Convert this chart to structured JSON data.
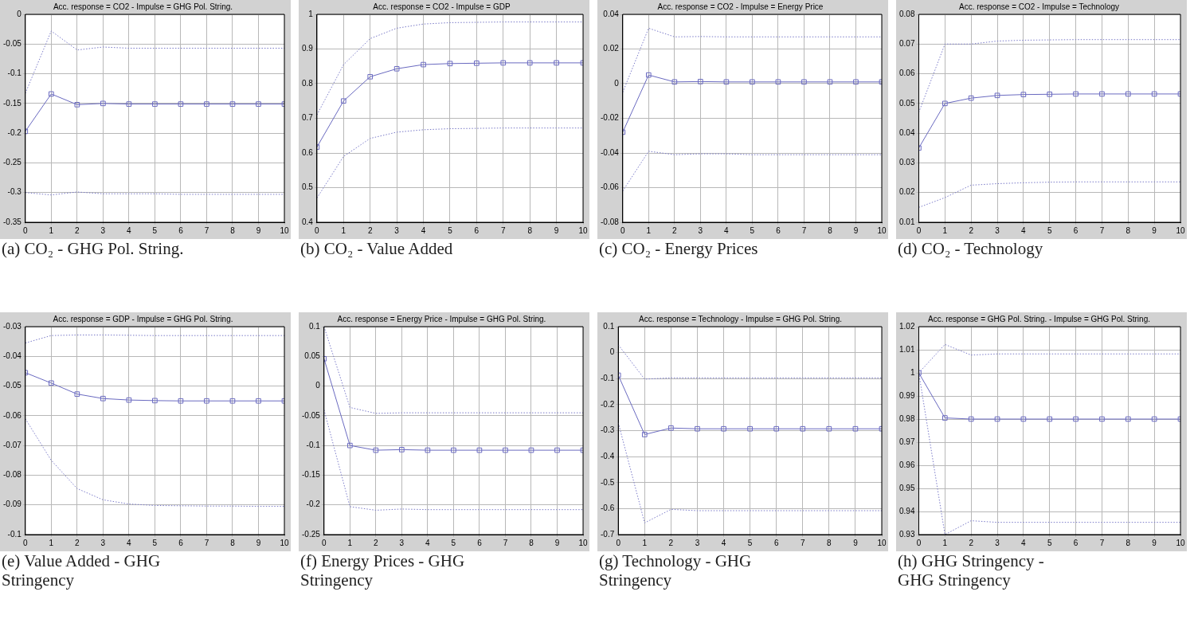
{
  "chart_data": [
    {
      "type": "line",
      "title": "Acc. response = CO2 - Impulse = GHG Pol. String.",
      "annotations": [
        "(a) CO₂ - GHG Pol. String."
      ],
      "x": [
        0,
        1,
        2,
        3,
        4,
        5,
        6,
        7,
        8,
        9,
        10
      ],
      "xlim": [
        0,
        10
      ],
      "xticks": [
        0,
        1,
        2,
        3,
        4,
        5,
        6,
        7,
        8,
        9,
        10
      ],
      "ylim": [
        -0.35,
        0
      ],
      "yticks": [
        -0.35,
        -0.3,
        -0.25,
        -0.2,
        -0.15,
        -0.1,
        -0.05,
        0
      ],
      "grid": true,
      "series": [
        {
          "color": "#7a7ac8",
          "line_style": "dotted",
          "marker": "none",
          "values": [
            -0.133,
            -0.028,
            -0.06,
            -0.055,
            -0.057,
            -0.057,
            -0.057,
            -0.057,
            -0.057,
            -0.057,
            -0.057
          ]
        },
        {
          "color": "#6a6ac0",
          "line_style": "solid",
          "marker": "square",
          "values": [
            -0.197,
            -0.134,
            -0.152,
            -0.15,
            -0.151,
            -0.151,
            -0.151,
            -0.151,
            -0.151,
            -0.151,
            -0.151
          ]
        },
        {
          "color": "#7a7ac8",
          "line_style": "dotted",
          "marker": "none",
          "values": [
            -0.3,
            -0.304,
            -0.299,
            -0.302,
            -0.302,
            -0.302,
            -0.303,
            -0.303,
            -0.303,
            -0.303,
            -0.303
          ]
        }
      ]
    },
    {
      "type": "line",
      "title": "Acc. response = CO2 - Impulse = GDP",
      "annotations": [
        "(b) CO₂ - Value Added"
      ],
      "x": [
        0,
        1,
        2,
        3,
        4,
        5,
        6,
        7,
        8,
        9,
        10
      ],
      "xlim": [
        0,
        10
      ],
      "xticks": [
        0,
        1,
        2,
        3,
        4,
        5,
        6,
        7,
        8,
        9,
        10
      ],
      "ylim": [
        0.4,
        1
      ],
      "yticks": [
        0.4,
        0.5,
        0.6,
        0.7,
        0.8,
        0.9,
        1
      ],
      "grid": true,
      "series": [
        {
          "color": "#7a7ac8",
          "line_style": "dotted",
          "marker": "none",
          "values": [
            0.71,
            0.855,
            0.93,
            0.96,
            0.972,
            0.976,
            0.977,
            0.978,
            0.978,
            0.978,
            0.978
          ]
        },
        {
          "color": "#6a6ac0",
          "line_style": "solid",
          "marker": "square",
          "values": [
            0.617,
            0.75,
            0.82,
            0.843,
            0.855,
            0.858,
            0.859,
            0.86,
            0.86,
            0.86,
            0.86
          ]
        },
        {
          "color": "#7a7ac8",
          "line_style": "dotted",
          "marker": "none",
          "values": [
            0.47,
            0.59,
            0.642,
            0.66,
            0.667,
            0.67,
            0.671,
            0.672,
            0.672,
            0.672,
            0.672
          ]
        }
      ]
    },
    {
      "type": "line",
      "title": "Acc. response = CO2 - Impulse = Energy Price",
      "annotations": [
        "(c) CO₂ - Energy Prices"
      ],
      "x": [
        0,
        1,
        2,
        3,
        4,
        5,
        6,
        7,
        8,
        9,
        10
      ],
      "xlim": [
        0,
        10
      ],
      "xticks": [
        0,
        1,
        2,
        3,
        4,
        5,
        6,
        7,
        8,
        9,
        10
      ],
      "ylim": [
        -0.08,
        0.04
      ],
      "yticks": [
        -0.08,
        -0.06,
        -0.04,
        -0.02,
        0,
        0.02,
        0.04
      ],
      "grid": true,
      "series": [
        {
          "color": "#7a7ac8",
          "line_style": "dotted",
          "marker": "none",
          "values": [
            -0.005,
            0.032,
            0.027,
            0.0272,
            0.027,
            0.027,
            0.027,
            0.027,
            0.027,
            0.027,
            0.027
          ]
        },
        {
          "color": "#6a6ac0",
          "line_style": "solid",
          "marker": "square",
          "values": [
            -0.028,
            0.005,
            0.001,
            0.0012,
            0.001,
            0.001,
            0.001,
            0.001,
            0.001,
            0.001,
            0.001
          ]
        },
        {
          "color": "#7a7ac8",
          "line_style": "dotted",
          "marker": "none",
          "values": [
            -0.062,
            -0.039,
            -0.041,
            -0.0405,
            -0.0405,
            -0.041,
            -0.041,
            -0.041,
            -0.041,
            -0.041,
            -0.041
          ]
        }
      ]
    },
    {
      "type": "line",
      "title": "Acc. response = CO2 - Impulse = Technology",
      "annotations": [
        "(d) CO₂ - Technology"
      ],
      "x": [
        0,
        1,
        2,
        3,
        4,
        5,
        6,
        7,
        8,
        9,
        10
      ],
      "xlim": [
        0,
        10
      ],
      "xticks": [
        0,
        1,
        2,
        3,
        4,
        5,
        6,
        7,
        8,
        9,
        10
      ],
      "ylim": [
        0.01,
        0.08
      ],
      "yticks": [
        0.01,
        0.02,
        0.03,
        0.04,
        0.05,
        0.06,
        0.07,
        0.08
      ],
      "grid": true,
      "series": [
        {
          "color": "#7a7ac8",
          "line_style": "dotted",
          "marker": "none",
          "values": [
            0.047,
            0.07,
            0.07,
            0.071,
            0.0713,
            0.0714,
            0.0715,
            0.0715,
            0.0715,
            0.0715,
            0.0715
          ]
        },
        {
          "color": "#6a6ac0",
          "line_style": "solid",
          "marker": "square",
          "values": [
            0.035,
            0.05,
            0.0518,
            0.0527,
            0.053,
            0.0531,
            0.0532,
            0.0532,
            0.0532,
            0.0532,
            0.0532
          ]
        },
        {
          "color": "#7a7ac8",
          "line_style": "dotted",
          "marker": "none",
          "values": [
            0.015,
            0.0183,
            0.0225,
            0.023,
            0.0233,
            0.0235,
            0.0236,
            0.0236,
            0.0236,
            0.0236,
            0.0236
          ]
        }
      ]
    },
    {
      "type": "line",
      "title": "Acc. response = GDP - Impulse = GHG Pol. String.",
      "annotations": [
        "(e) Value Added - GHG Stringency"
      ],
      "x": [
        0,
        1,
        2,
        3,
        4,
        5,
        6,
        7,
        8,
        9,
        10
      ],
      "xlim": [
        0,
        10
      ],
      "xticks": [
        0,
        1,
        2,
        3,
        4,
        5,
        6,
        7,
        8,
        9,
        10
      ],
      "ylim": [
        -0.1,
        -0.03
      ],
      "yticks": [
        -0.1,
        -0.09,
        -0.08,
        -0.07,
        -0.06,
        -0.05,
        -0.04,
        -0.03
      ],
      "grid": true,
      "series": [
        {
          "color": "#7a7ac8",
          "line_style": "dotted",
          "marker": "none",
          "values": [
            -0.0355,
            -0.033,
            -0.0328,
            -0.0328,
            -0.0329,
            -0.033,
            -0.033,
            -0.033,
            -0.033,
            -0.033,
            -0.033
          ]
        },
        {
          "color": "#6a6ac0",
          "line_style": "solid",
          "marker": "square",
          "values": [
            -0.0455,
            -0.049,
            -0.0527,
            -0.0542,
            -0.0547,
            -0.0549,
            -0.055,
            -0.055,
            -0.055,
            -0.055,
            -0.055
          ]
        },
        {
          "color": "#7a7ac8",
          "line_style": "dotted",
          "marker": "none",
          "values": [
            -0.061,
            -0.075,
            -0.0845,
            -0.0883,
            -0.0897,
            -0.0902,
            -0.0903,
            -0.0904,
            -0.0904,
            -0.0905,
            -0.0905
          ]
        }
      ]
    },
    {
      "type": "line",
      "title": "Acc. response = Energy Price - Impulse = GHG Pol. String.",
      "annotations": [
        "(f) Energy Prices - GHG Stringency"
      ],
      "x": [
        0,
        1,
        2,
        3,
        4,
        5,
        6,
        7,
        8,
        9,
        10
      ],
      "xlim": [
        0,
        10
      ],
      "xticks": [
        0,
        1,
        2,
        3,
        4,
        5,
        6,
        7,
        8,
        9,
        10
      ],
      "ylim": [
        -0.25,
        0.1
      ],
      "yticks": [
        -0.25,
        -0.2,
        -0.15,
        -0.1,
        -0.05,
        0,
        0.05,
        0.1
      ],
      "grid": true,
      "series": [
        {
          "color": "#7a7ac8",
          "line_style": "dotted",
          "marker": "none",
          "values": [
            0.1,
            -0.036,
            -0.046,
            -0.045,
            -0.045,
            -0.045,
            -0.045,
            -0.045,
            -0.045,
            -0.045,
            -0.045
          ]
        },
        {
          "color": "#6a6ac0",
          "line_style": "solid",
          "marker": "square",
          "values": [
            0.046,
            -0.1,
            -0.108,
            -0.107,
            -0.108,
            -0.108,
            -0.108,
            -0.108,
            -0.108,
            -0.108,
            -0.108
          ]
        },
        {
          "color": "#7a7ac8",
          "line_style": "dotted",
          "marker": "none",
          "values": [
            -0.04,
            -0.203,
            -0.209,
            -0.207,
            -0.208,
            -0.208,
            -0.208,
            -0.208,
            -0.208,
            -0.208,
            -0.208
          ]
        }
      ]
    },
    {
      "type": "line",
      "title": "Acc. response = Technology - Impulse = GHG Pol. String.",
      "annotations": [
        "(g) Technology - GHG Stringency"
      ],
      "x": [
        0,
        1,
        2,
        3,
        4,
        5,
        6,
        7,
        8,
        9,
        10
      ],
      "xlim": [
        0,
        10
      ],
      "xticks": [
        0,
        1,
        2,
        3,
        4,
        5,
        6,
        7,
        8,
        9,
        10
      ],
      "ylim": [
        -0.7,
        0.1
      ],
      "yticks": [
        -0.7,
        -0.6,
        -0.5,
        -0.4,
        -0.3,
        -0.2,
        -0.1,
        0,
        0.1
      ],
      "grid": true,
      "series": [
        {
          "color": "#7a7ac8",
          "line_style": "dotted",
          "marker": "none",
          "values": [
            0.03,
            -0.102,
            -0.097,
            -0.097,
            -0.097,
            -0.097,
            -0.097,
            -0.097,
            -0.097,
            -0.097,
            -0.097
          ]
        },
        {
          "color": "#6a6ac0",
          "line_style": "solid",
          "marker": "square",
          "values": [
            -0.087,
            -0.315,
            -0.29,
            -0.293,
            -0.293,
            -0.293,
            -0.293,
            -0.293,
            -0.293,
            -0.293,
            -0.293
          ]
        },
        {
          "color": "#7a7ac8",
          "line_style": "dotted",
          "marker": "none",
          "values": [
            -0.27,
            -0.655,
            -0.603,
            -0.608,
            -0.608,
            -0.608,
            -0.608,
            -0.608,
            -0.608,
            -0.608,
            -0.608
          ]
        }
      ]
    },
    {
      "type": "line",
      "title": "Acc. response = GHG Pol. String. - Impulse = GHG Pol. String.",
      "annotations": [
        "(h) GHG Stringency - GHG Stringency"
      ],
      "x": [
        0,
        1,
        2,
        3,
        4,
        5,
        6,
        7,
        8,
        9,
        10
      ],
      "xlim": [
        0,
        10
      ],
      "xticks": [
        0,
        1,
        2,
        3,
        4,
        5,
        6,
        7,
        8,
        9,
        10
      ],
      "ylim": [
        0.93,
        1.02
      ],
      "yticks": [
        0.93,
        0.94,
        0.95,
        0.96,
        0.97,
        0.98,
        0.99,
        1,
        1.01,
        1.02
      ],
      "grid": true,
      "series": [
        {
          "color": "#7a7ac8",
          "line_style": "dotted",
          "marker": "none",
          "values": [
            1,
            1.0123,
            1.0077,
            1.0082,
            1.0082,
            1.0082,
            1.0082,
            1.0082,
            1.0082,
            1.0082,
            1.0082
          ]
        },
        {
          "color": "#6a6ac0",
          "line_style": "solid",
          "marker": "square",
          "values": [
            1,
            0.9805,
            0.98,
            0.98,
            0.98,
            0.98,
            0.98,
            0.98,
            0.98,
            0.98,
            0.98
          ]
        },
        {
          "color": "#7a7ac8",
          "line_style": "dotted",
          "marker": "none",
          "values": [
            1,
            0.93,
            0.936,
            0.9353,
            0.9353,
            0.9353,
            0.9353,
            0.9353,
            0.9353,
            0.9353,
            0.9353
          ]
        }
      ]
    }
  ]
}
